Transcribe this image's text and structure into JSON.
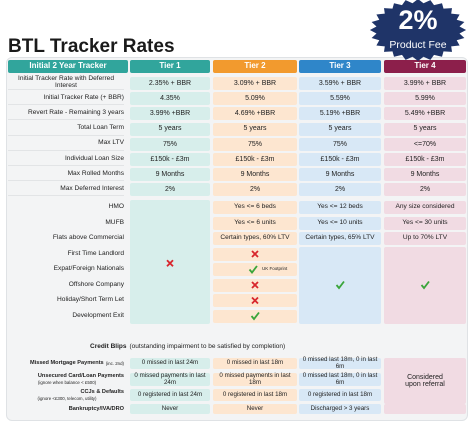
{
  "header": {
    "title": "BTL Tracker Rates",
    "badge_value": "2%",
    "badge_label": "Product Fee"
  },
  "table": {
    "columns": [
      "Initial 2 Year Tracker",
      "Tier 1",
      "Tier 2",
      "Tier 3",
      "Tier 4"
    ],
    "rows": [
      [
        "Initial Tracker Rate with Deferred Interest",
        "2.35% + BBR",
        "3.09% + BBR",
        "3.59% + BBR",
        "3.99% + BBR"
      ],
      [
        "Initial Tracker Rate (+ BBR)",
        "4.35%",
        "5.09%",
        "5.59%",
        "5.99%"
      ],
      [
        "Revert Rate - Remaining 3 years",
        "3.99% +BBR",
        "4.69% +BBR",
        "5.19% +BBR",
        "5.49% +BBR"
      ],
      [
        "Total Loan Term",
        "5 years",
        "5 years",
        "5 years",
        "5 years"
      ],
      [
        "Max LTV",
        "75%",
        "75%",
        "75%",
        "<=70%"
      ],
      [
        "Individual Loan Size",
        "£150k - £3m",
        "£150k - £3m",
        "£150k - £3m",
        "£150k - £3m"
      ],
      [
        "Max Rolled Months",
        "9 Months",
        "9 Months",
        "9 Months",
        "9 Months"
      ],
      [
        "Max Deferred Interest",
        "2%",
        "2%",
        "2%",
        "2%"
      ]
    ]
  },
  "features": {
    "labels": [
      "HMO",
      "MUFB",
      "Flats above Commercial",
      "First Time Landlord",
      "Expat/Foreign Nationals",
      "Offshore Company",
      "Holiday/Short Term Let",
      "Development Exit"
    ],
    "tier2": [
      "Yes <= 6 beds",
      "Yes <= 6 units",
      "Certain types, 60% LTV"
    ],
    "tier3": [
      "Yes <= 12 beds",
      "Yes <= 10 units",
      "Certain types, 65% LTV"
    ],
    "tier4": [
      "Any size considered",
      "Yes <= 30 units",
      "Up to 70% LTV"
    ],
    "note": "UK Footprint"
  },
  "credit": {
    "title": "Credit Blips",
    "subtitle": "(outstanding impairment to be satisfied by completion)",
    "rows": [
      {
        "label": "Missed Mortgage Payments",
        "sublabel": "(inc. 2nd)",
        "values": [
          "0 missed in last 24m",
          "0 missed in last 18m",
          "0 missed last 18m, 0 in last 6m"
        ]
      },
      {
        "label": "Unsecured Card/Loan Payments",
        "sublabel": "(ignore when balance < £500)",
        "values": [
          "0 missed payments in last 24m",
          "0 missed payments in last 18m",
          "0 missed last 18m, 0 in last 6m"
        ]
      },
      {
        "label": "CCJs & Defaults",
        "sublabel": "(ignore <£300, telecom, utility)",
        "values": [
          "0 registered in last 24m",
          "0 registered in last 18m",
          "0 registered in last 18m"
        ]
      },
      {
        "label": "Bankruptcy/IVA/DRO",
        "values": [
          "Never",
          "Never",
          "Discharged > 3 years"
        ]
      }
    ],
    "referral": "Considered upon referral"
  }
}
